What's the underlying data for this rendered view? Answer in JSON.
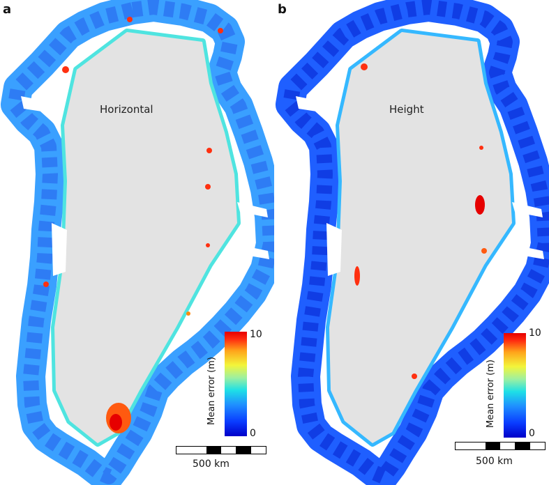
{
  "panels": [
    {
      "letter": "a",
      "map_label": "Horizontal",
      "colorbar": {
        "title": "Mean error (m)",
        "min": "0",
        "max": "10"
      },
      "scale": {
        "label": "500 km"
      },
      "dominant_coast_color": "#3aa0ff",
      "hotspot_color": "#ff3010"
    },
    {
      "letter": "b",
      "map_label": "Height",
      "colorbar": {
        "title": "Mean error (m)",
        "min": "0",
        "max": "10"
      },
      "scale": {
        "label": "500 km"
      },
      "dominant_coast_color": "#1f5fff",
      "hotspot_color": "#ff3010"
    }
  ],
  "colors": {
    "ice_sheet": "#e3e3e3",
    "colorbar_low": "#0000c8",
    "colorbar_mid": "#1ee0e6",
    "colorbar_high": "#e60000"
  }
}
